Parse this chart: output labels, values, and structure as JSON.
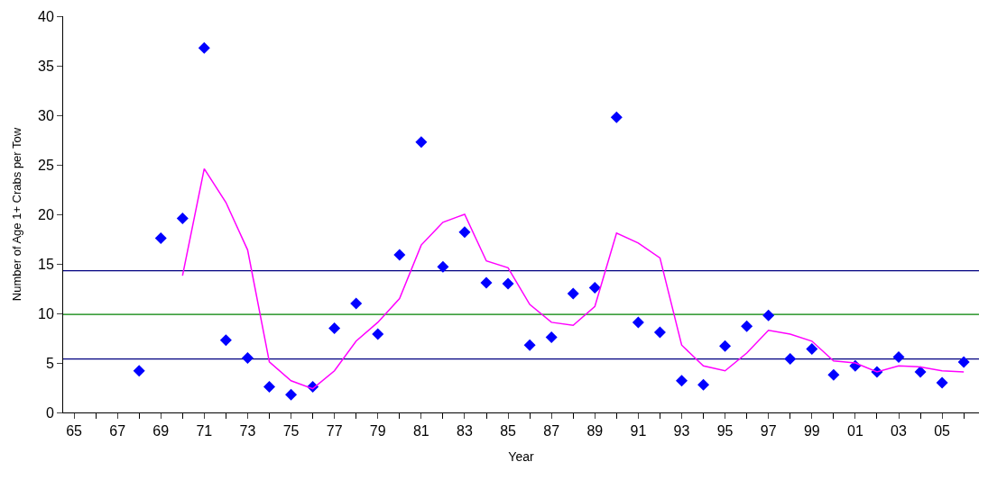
{
  "chart_data": {
    "type": "scatter",
    "xlabel": "Year",
    "ylabel": "Number of Age 1+ Crabs per Tow",
    "categories": [
      "65",
      null,
      "67",
      null,
      "69",
      null,
      "71",
      null,
      "73",
      null,
      "75",
      null,
      "77",
      null,
      "79",
      null,
      "81",
      null,
      "83",
      null,
      "85",
      null,
      "87",
      null,
      "89",
      null,
      "91",
      null,
      "93",
      null,
      "95",
      null,
      "97",
      null,
      "99",
      null,
      "01",
      null,
      "03",
      null,
      "05",
      null
    ],
    "series": [
      {
        "marker": "diamond",
        "color": "#0000ff",
        "values": [
          null,
          null,
          null,
          4.2,
          17.6,
          19.6,
          36.8,
          7.3,
          5.5,
          2.6,
          1.8,
          2.6,
          8.5,
          11.0,
          7.9,
          15.9,
          27.3,
          14.7,
          18.2,
          13.1,
          13.0,
          6.8,
          7.6,
          12.0,
          12.6,
          29.8,
          9.1,
          8.1,
          3.2,
          2.8,
          6.7,
          8.7,
          9.8,
          5.4,
          6.4,
          3.8,
          4.7,
          4.1,
          5.6,
          4.1,
          3.0,
          5.1
        ]
      },
      {
        "type": "line",
        "marker": "none",
        "color": "#ff00ff",
        "values": [
          null,
          null,
          null,
          null,
          null,
          13.8,
          24.6,
          21.2,
          16.4,
          5.1,
          3.2,
          2.4,
          4.2,
          7.2,
          9.1,
          11.5,
          16.9,
          19.2,
          20.0,
          15.3,
          14.6,
          10.9,
          9.1,
          8.8,
          10.7,
          18.1,
          17.1,
          15.6,
          6.8,
          4.7,
          4.2,
          6.0,
          8.3,
          7.9,
          7.2,
          5.2,
          5.0,
          4.1,
          4.7,
          4.6,
          4.2,
          4.1
        ]
      }
    ],
    "ylim": [
      0,
      40
    ],
    "yticks": [
      0,
      5,
      10,
      15,
      20,
      25,
      30,
      35,
      40
    ],
    "ref_lines": [
      {
        "axis": "y",
        "value": 14.3,
        "color": "#000080"
      },
      {
        "axis": "y",
        "value": 9.9,
        "color": "#008000"
      },
      {
        "axis": "y",
        "value": 5.4,
        "color": "#000080"
      }
    ],
    "grid": false
  }
}
